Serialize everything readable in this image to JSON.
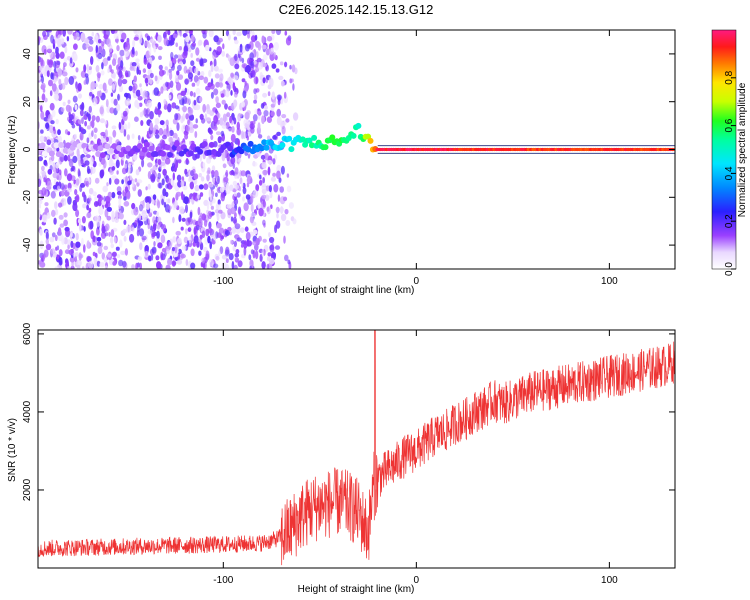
{
  "figure": {
    "title": "C2E6.2025.142.15.13.G12"
  },
  "chart_data": [
    {
      "type": "heatmap",
      "xlabel": "Height of straight line (km)",
      "ylabel": "Frequency (Hz)",
      "xlim": [
        -196,
        134
      ],
      "ylim": [
        -50,
        50
      ],
      "xticks": [
        -100,
        0,
        100
      ],
      "yticks": [
        -40,
        -20,
        0,
        20,
        40
      ],
      "colorbar": {
        "label": "Normalized spectral amplitude",
        "range": [
          0,
          1
        ],
        "ticks": [
          0.0,
          0.2,
          0.4,
          0.6,
          0.8
        ]
      },
      "description_points": [
        {
          "x": -196,
          "y": 0,
          "amplitude": 0.05
        },
        {
          "x": -100,
          "y": 0,
          "amplitude": 0.2
        },
        {
          "x": -80,
          "y": 1,
          "amplitude": 0.35
        },
        {
          "x": -60,
          "y": 3,
          "amplitude": 0.5
        },
        {
          "x": -40,
          "y": 3,
          "amplitude": 0.6
        },
        {
          "x": -30,
          "y": 8,
          "amplitude": 0.5
        },
        {
          "x": -20,
          "y": 0,
          "amplitude": 0.95
        },
        {
          "x": 0,
          "y": 0,
          "amplitude": 0.95
        },
        {
          "x": 50,
          "y": 0,
          "amplitude": 0.92
        },
        {
          "x": 100,
          "y": 0,
          "amplitude": 0.92
        },
        {
          "x": 134,
          "y": 0,
          "amplitude": 0.92
        }
      ]
    },
    {
      "type": "line",
      "xlabel": "Height of straight line (km)",
      "ylabel": "SNR (10 * v/v)",
      "xlim": [
        -196,
        134
      ],
      "ylim": [
        0,
        6100
      ],
      "xticks": [
        -100,
        0,
        100
      ],
      "yticks": [
        2000,
        4000,
        6000
      ],
      "series": [
        {
          "color": "#ee3333",
          "x": [
            -196,
            -180,
            -160,
            -140,
            -120,
            -100,
            -90,
            -80,
            -75,
            -70,
            -65,
            -60,
            -55,
            -50,
            -45,
            -40,
            -35,
            -30,
            -25,
            -22,
            -20,
            -15,
            -10,
            -5,
            0,
            5,
            10,
            15,
            20,
            25,
            30,
            35,
            40,
            45,
            50,
            55,
            60,
            70,
            80,
            90,
            100,
            110,
            120,
            130,
            134
          ],
          "y": [
            500,
            520,
            540,
            560,
            580,
            600,
            620,
            640,
            700,
            800,
            1000,
            1300,
            1500,
            1600,
            1650,
            1700,
            1600,
            1400,
            900,
            2100,
            2300,
            2500,
            2700,
            2900,
            3000,
            3200,
            3400,
            3500,
            3700,
            3800,
            4000,
            4100,
            4300,
            4200,
            4300,
            4400,
            4500,
            4600,
            4700,
            4800,
            4900,
            5000,
            5100,
            5200,
            5300
          ]
        }
      ]
    }
  ]
}
